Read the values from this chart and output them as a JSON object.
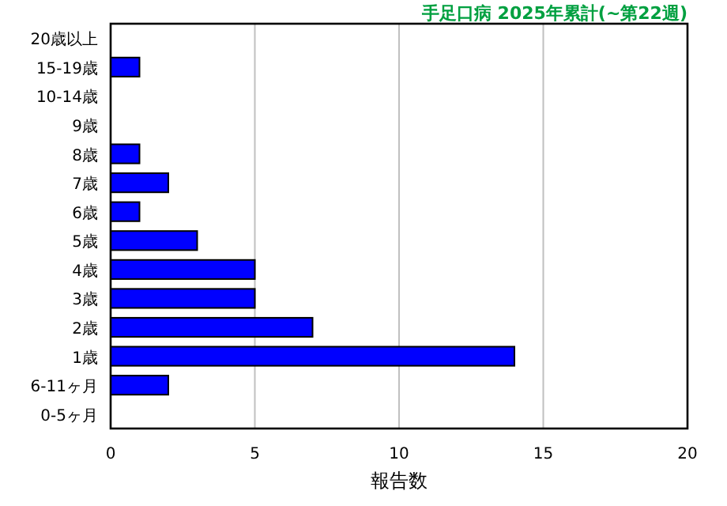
{
  "chart_data": {
    "type": "bar",
    "orientation": "horizontal",
    "title": "手足口病 2025年累計(~第22週)",
    "categories": [
      "20歳以上",
      "15-19歳",
      "10-14歳",
      "9歳",
      "8歳",
      "7歳",
      "6歳",
      "5歳",
      "4歳",
      "3歳",
      "2歳",
      "1歳",
      "6-11ヶ月",
      "0-5ヶ月"
    ],
    "values": [
      0,
      1,
      0,
      0,
      1,
      2,
      1,
      3,
      5,
      5,
      7,
      14,
      2,
      0
    ],
    "color": "#0000ff",
    "xlabel": "報告数",
    "xlim": [
      0,
      20
    ],
    "xticks": [
      0,
      5,
      10,
      15,
      20
    ],
    "grid": "x"
  }
}
